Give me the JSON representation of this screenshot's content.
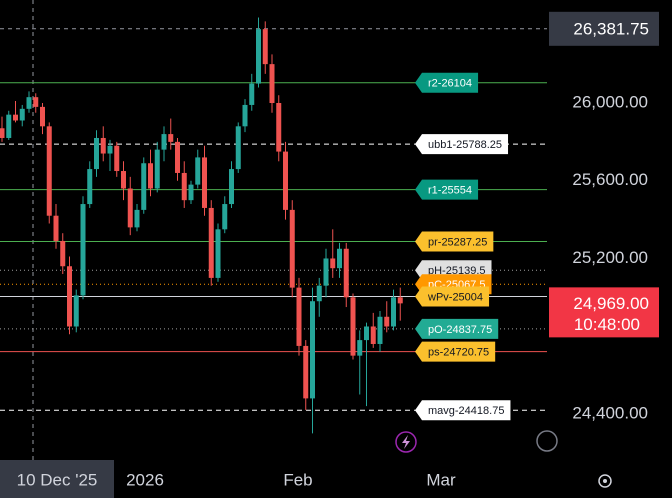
{
  "chart_data": {
    "type": "candlestick",
    "ylim": [
      24163,
      26530
    ],
    "yticks": [
      {
        "value": 26000,
        "label": "26,000.00"
      },
      {
        "value": 25600,
        "label": "25,600.00"
      },
      {
        "value": 25200,
        "label": "25,200.00"
      },
      {
        "value": 24400,
        "label": "24,400.00"
      }
    ],
    "x_labels": [
      "10 Dec '25",
      "2026",
      "Feb",
      "Mar"
    ],
    "up_color": "#26a69a",
    "down_color": "#ef5350",
    "open": [
      25870,
      25820,
      25940,
      25910,
      25970,
      26030,
      25980,
      25880,
      25420,
      25290,
      25160,
      24850,
      25010,
      25480,
      25660,
      25820,
      25740,
      25780,
      25650,
      25560,
      25360,
      25450,
      25690,
      25560,
      25760,
      25840,
      25800,
      25640,
      25500,
      25580,
      25720,
      25460,
      25100,
      25350,
      25480,
      25660,
      25880,
      25990,
      26100,
      26380,
      26200,
      26000,
      25750,
      25450,
      25050,
      24750,
      24480,
      24980,
      25060,
      25200,
      25150,
      25250,
      25000,
      24700,
      24780,
      24850,
      24760,
      24900,
      24850,
      25000
    ],
    "high": [
      25930,
      25960,
      26010,
      25990,
      26060,
      26050,
      26000,
      25900,
      25480,
      25330,
      25210,
      25040,
      25520,
      25700,
      25860,
      25880,
      25810,
      25800,
      25700,
      25620,
      25480,
      25720,
      25760,
      25800,
      25880,
      25920,
      25820,
      25700,
      25600,
      25760,
      25780,
      25500,
      25380,
      25520,
      25700,
      25900,
      26020,
      26150,
      26440,
      26420,
      26250,
      26040,
      25800,
      25500,
      25100,
      24780,
      25050,
      25100,
      25250,
      25350,
      25280,
      25280,
      25020,
      24830,
      24870,
      24920,
      24930,
      24980,
      25040,
      25050
    ],
    "low": [
      25800,
      25810,
      25900,
      25880,
      25950,
      25950,
      25840,
      25380,
      25250,
      25120,
      24810,
      24820,
      24990,
      25460,
      25620,
      25700,
      25650,
      25620,
      25500,
      25320,
      25340,
      25430,
      25520,
      25540,
      25700,
      25760,
      25600,
      25460,
      25480,
      25560,
      25420,
      25060,
      25080,
      25330,
      25460,
      25640,
      25850,
      25960,
      26080,
      26150,
      25950,
      25700,
      25400,
      25000,
      24700,
      24420,
      24300,
      24900,
      25000,
      25100,
      25100,
      24950,
      24680,
      24500,
      24440,
      24740,
      24720,
      24820,
      24830,
      24880
    ],
    "close": [
      25820,
      25940,
      25910,
      25970,
      26030,
      25980,
      25880,
      25420,
      25290,
      25160,
      24850,
      25010,
      25480,
      25660,
      25820,
      25740,
      25780,
      25650,
      25560,
      25360,
      25450,
      25690,
      25560,
      25760,
      25840,
      25800,
      25640,
      25500,
      25580,
      25720,
      25460,
      25100,
      25350,
      25480,
      25660,
      25880,
      25990,
      26100,
      26380,
      26200,
      26000,
      25750,
      25450,
      25050,
      24750,
      24480,
      24980,
      25060,
      25200,
      25150,
      25250,
      25000,
      24700,
      24780,
      24850,
      24760,
      24900,
      24850,
      25000,
      24969
    ],
    "levels": [
      {
        "label": "r2-26104",
        "value": 26104,
        "line_color": "#4caf50",
        "line_style": "solid",
        "label_bg": "#089981",
        "label_color": "#ffffff"
      },
      {
        "label": "ubb1-25788.25",
        "value": 25788.25,
        "line_color": "#ffffff",
        "line_style": "dashed",
        "label_bg": "#ffffff",
        "label_color": "#131722"
      },
      {
        "label": "r1-25554",
        "value": 25554,
        "line_color": "#4caf50",
        "line_style": "solid",
        "label_bg": "#089981",
        "label_color": "#ffffff"
      },
      {
        "label": "pr-25287.25",
        "value": 25287.25,
        "line_color": "#4caf50",
        "line_style": "solid",
        "label_bg": "#fbc02d",
        "label_color": "#131722"
      },
      {
        "label": "pH-25139.5",
        "value": 25139.5,
        "line_color": "#9e9e9e",
        "line_style": "dotted",
        "label_bg": "#e0e0e0",
        "label_color": "#131722"
      },
      {
        "label": "pC-25067.5",
        "value": 25067.5,
        "line_color": "#ff9800",
        "line_style": "dotted",
        "label_bg": "#ff9800",
        "label_color": "#ffffff"
      },
      {
        "label": "wPv-25004",
        "value": 25004,
        "line_color": "#d1d4dc",
        "line_style": "solid",
        "label_bg": "#fbc02d",
        "label_color": "#131722"
      },
      {
        "label": "pO-24837.75",
        "value": 24837.75,
        "line_color": "#9e9e9e",
        "line_style": "dotted",
        "label_bg": "#22ab94",
        "label_color": "#ffffff"
      },
      {
        "label": "ps-24720.75",
        "value": 24720.75,
        "line_color": "#ef5350",
        "line_style": "solid",
        "label_bg": "#fbc02d",
        "label_color": "#131722"
      },
      {
        "label": "mavg-24418.75",
        "value": 24418.75,
        "line_color": "#ffffff",
        "line_style": "dashed",
        "label_bg": "#ffffff",
        "label_color": "#131722"
      }
    ],
    "crosshair_price": {
      "value": 26381.75,
      "label": "26,381.75"
    },
    "last_price": {
      "value": 24969,
      "label": "24,969.00",
      "countdown": "10:48:00"
    }
  }
}
